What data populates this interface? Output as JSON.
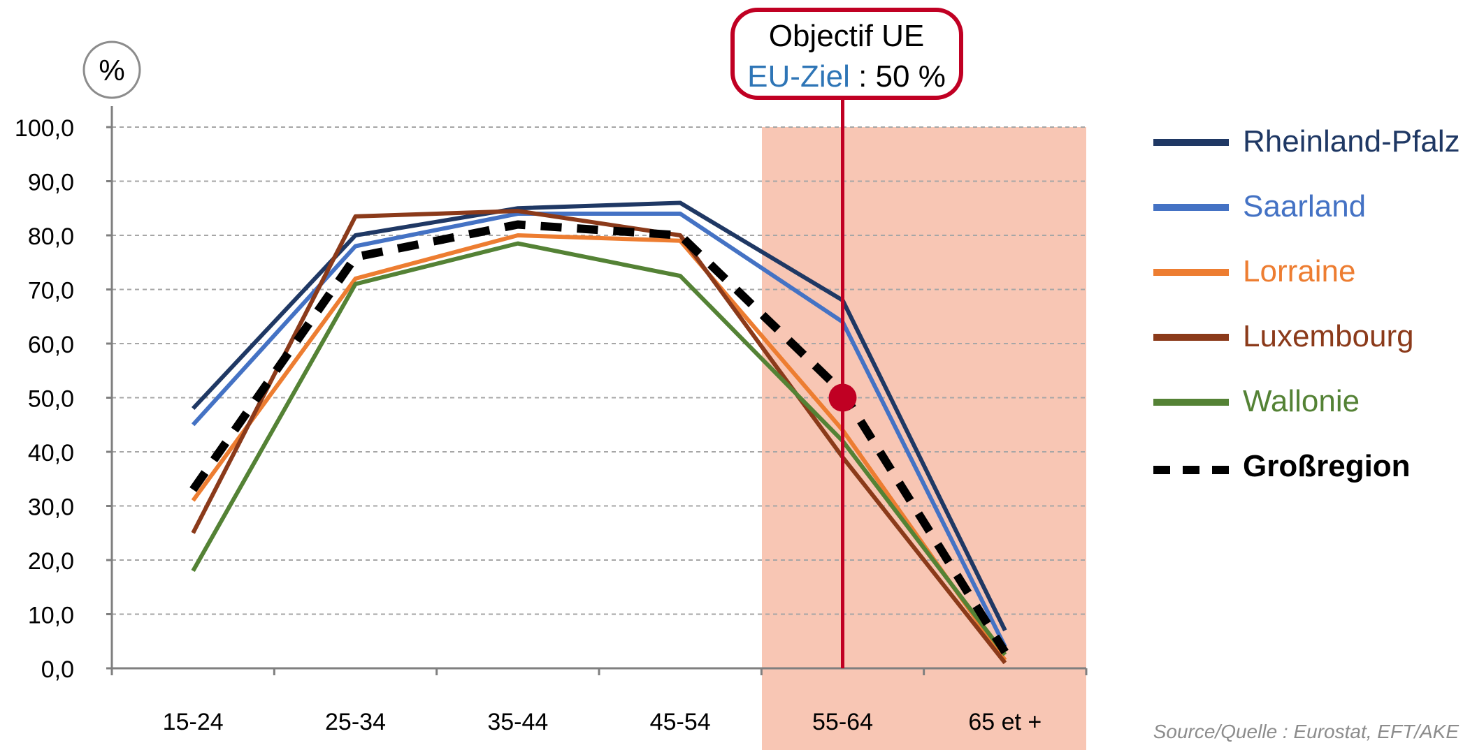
{
  "chart_data": {
    "type": "line",
    "ylabel": "%",
    "ylim": [
      0,
      100
    ],
    "yticks": [
      "0,0",
      "10,0",
      "20,0",
      "30,0",
      "40,0",
      "50,0",
      "60,0",
      "70,0",
      "80,0",
      "90,0",
      "100,0"
    ],
    "categories": [
      "15-24",
      "25-34",
      "35-44",
      "45-54",
      "55-64",
      "65 et +"
    ],
    "highlighted_category": "55-64",
    "grid": true,
    "legend_position": "right",
    "series": [
      {
        "name": "Rheinland-Pfalz",
        "color": "#1f3864",
        "dashed": false,
        "values": [
          48,
          80,
          85,
          86,
          68,
          7
        ]
      },
      {
        "name": "Saarland",
        "color": "#4472c4",
        "dashed": false,
        "values": [
          45,
          78,
          84,
          84,
          64,
          4
        ]
      },
      {
        "name": "Lorraine",
        "color": "#ed7d31",
        "dashed": false,
        "values": [
          31,
          72,
          80,
          79,
          44,
          1.5
        ]
      },
      {
        "name": "Luxembourg",
        "color": "#8b3a1a",
        "dashed": false,
        "values": [
          25,
          83.5,
          84.5,
          80,
          39,
          1
        ]
      },
      {
        "name": "Wallonie",
        "color": "#548235",
        "dashed": false,
        "values": [
          18,
          71,
          78.5,
          72.5,
          42,
          2.5
        ]
      },
      {
        "name": "Großregion",
        "color": "#000000",
        "dashed": true,
        "values": [
          33,
          76,
          82,
          80,
          51,
          3
        ]
      }
    ],
    "target": {
      "line1": "Objectif UE",
      "line2_prefix": "EU-Ziel",
      "line2_suffix": ":  50 %",
      "value": 50,
      "category": "55-64",
      "color": "#c00023"
    }
  },
  "source": "Source/Quelle : Eurostat, EFT/AKE",
  "colors": {
    "highlight_band": "#f8c6b4",
    "grid": "#a6a6a6",
    "axis": "#7f7f7f",
    "eu_ziel_text": "#2e75b6"
  }
}
